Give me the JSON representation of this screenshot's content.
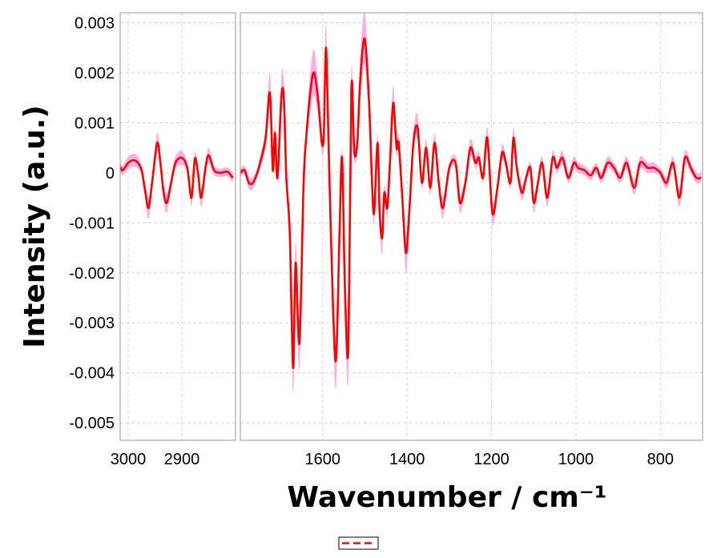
{
  "chart_data": {
    "type": "line",
    "ylabel": "Intensity (a.u.)",
    "xlabel": "Wavenumber / cm⁻¹",
    "ylim": [
      -0.00535,
      0.0032
    ],
    "y_ticks": [
      "0.003",
      "0.002",
      "0.001",
      "0",
      "-0.001",
      "-0.002",
      "-0.003",
      "-0.004",
      "-0.005"
    ],
    "y_tick_values": [
      0.003,
      0.002,
      0.001,
      0,
      -0.001,
      -0.002,
      -0.003,
      -0.004,
      -0.005
    ],
    "grid": true,
    "legend_position": "bottom-center",
    "colors": {
      "line": "#ff0000",
      "band": "#f7a6e6",
      "frame": "#9a9a9a",
      "grid": "#d6d6d6"
    },
    "panels": [
      {
        "xlim": [
          3015,
          2800
        ],
        "x_ticks": [
          "3000",
          "2900"
        ],
        "x_tick_values": [
          3000,
          2900
        ]
      },
      {
        "xlim": [
          1795,
          700
        ],
        "x_ticks": [
          "1600",
          "1400",
          "1200",
          "1000",
          "800"
        ],
        "x_tick_values": [
          1600,
          1400,
          1200,
          1000,
          800
        ]
      }
    ],
    "series": [
      {
        "line_style": "solid",
        "band_style": "shaded",
        "points_high": [
          [
            3015,
            0.00012
          ],
          [
            3010,
            5e-05
          ],
          [
            3000,
            0.0002
          ],
          [
            2990,
            0.00025
          ],
          [
            2982,
            0.0002
          ],
          [
            2975,
            5e-05
          ],
          [
            2968,
            -0.0004
          ],
          [
            2962,
            -0.0007
          ],
          [
            2955,
            -0.00015
          ],
          [
            2946,
            0.0006
          ],
          [
            2940,
            0.0002
          ],
          [
            2934,
            -0.0004
          ],
          [
            2928,
            -0.0006
          ],
          [
            2920,
            -0.0002
          ],
          [
            2912,
            0.0002
          ],
          [
            2900,
            0.0003
          ],
          [
            2890,
            0.0001
          ],
          [
            2882,
            -0.0005
          ],
          [
            2876,
            0.00028
          ],
          [
            2870,
            0.0
          ],
          [
            2864,
            -0.0005
          ],
          [
            2856,
            0.0001
          ],
          [
            2850,
            0.00035
          ],
          [
            2840,
            5e-05
          ],
          [
            2828,
            0.0
          ],
          [
            2815,
            2e-05
          ],
          [
            2805,
            -0.0001
          ]
        ],
        "points_low": [
          [
            1795,
            0.0
          ],
          [
            1785,
            5e-05
          ],
          [
            1775,
            -0.0002
          ],
          [
            1765,
            -0.0002
          ],
          [
            1755,
            0.0
          ],
          [
            1745,
            0.0003
          ],
          [
            1735,
            0.0007
          ],
          [
            1725,
            0.0016
          ],
          [
            1718,
            5e-05
          ],
          [
            1713,
            0.0008
          ],
          [
            1707,
            -0.0001
          ],
          [
            1698,
            0.0015
          ],
          [
            1692,
            0.0015
          ],
          [
            1686,
            -0.0001
          ],
          [
            1678,
            -0.0012
          ],
          [
            1670,
            -0.0039
          ],
          [
            1664,
            -0.0018
          ],
          [
            1655,
            -0.0034
          ],
          [
            1645,
            -0.0002
          ],
          [
            1638,
            0.0008
          ],
          [
            1628,
            0.0017
          ],
          [
            1620,
            0.002
          ],
          [
            1610,
            0.0014
          ],
          [
            1602,
            0.0006
          ],
          [
            1597,
            0.0008
          ],
          [
            1592,
            0.0025
          ],
          [
            1585,
            0.0002
          ],
          [
            1575,
            -0.0028
          ],
          [
            1568,
            -0.0037
          ],
          [
            1560,
            -0.0012
          ],
          [
            1554,
            0.0003
          ],
          [
            1547,
            -0.0024
          ],
          [
            1539,
            -0.0035
          ],
          [
            1532,
            0.0017
          ],
          [
            1525,
            0.0004
          ],
          [
            1518,
            0.0006
          ],
          [
            1512,
            0.0017
          ],
          [
            1505,
            0.0025
          ],
          [
            1499,
            0.0026
          ],
          [
            1490,
            0.0014
          ],
          [
            1483,
            -0.0002
          ],
          [
            1478,
            -0.0008
          ],
          [
            1470,
            0.0006
          ],
          [
            1465,
            -0.0008
          ],
          [
            1459,
            -0.0013
          ],
          [
            1454,
            -0.0004
          ],
          [
            1447,
            -0.0007
          ],
          [
            1440,
            0.0003
          ],
          [
            1433,
            0.0014
          ],
          [
            1425,
            0.0005
          ],
          [
            1420,
            0.0006
          ],
          [
            1412,
            -0.0004
          ],
          [
            1403,
            -0.0016
          ],
          [
            1395,
            -0.0008
          ],
          [
            1385,
            0.0006
          ],
          [
            1375,
            0.0009
          ],
          [
            1365,
            -0.0002
          ],
          [
            1355,
            0.0005
          ],
          [
            1345,
            -0.0003
          ],
          [
            1335,
            0.0006
          ],
          [
            1325,
            -0.0002
          ],
          [
            1315,
            -0.0007
          ],
          [
            1300,
            0.0001
          ],
          [
            1285,
            0.0002
          ],
          [
            1275,
            -0.0006
          ],
          [
            1262,
            -0.0002
          ],
          [
            1250,
            0.0005
          ],
          [
            1238,
            0.0002
          ],
          [
            1230,
            0.0003
          ],
          [
            1220,
            -0.0001
          ],
          [
            1210,
            0.0007
          ],
          [
            1198,
            -0.0008
          ],
          [
            1186,
            -0.0003
          ],
          [
            1175,
            0.0004
          ],
          [
            1166,
            0.0002
          ],
          [
            1155,
            -0.0002
          ],
          [
            1148,
            0.0007
          ],
          [
            1140,
            0.0001
          ],
          [
            1128,
            -0.0004
          ],
          [
            1118,
            -0.0001
          ],
          [
            1108,
            0.0001
          ],
          [
            1100,
            -0.0006
          ],
          [
            1090,
            -0.0002
          ],
          [
            1080,
            0.0002
          ],
          [
            1068,
            -0.0005
          ],
          [
            1055,
            0.0003
          ],
          [
            1045,
            0.0001
          ],
          [
            1032,
            0.0003
          ],
          [
            1018,
            -0.0001
          ],
          [
            1005,
            0.0002
          ],
          [
            995,
            0.0001
          ],
          [
            980,
            5e-05
          ],
          [
            965,
            -5e-05
          ],
          [
            952,
            0.0001
          ],
          [
            940,
            -0.0001
          ],
          [
            925,
            0.0002
          ],
          [
            910,
            0.0001
          ],
          [
            895,
            -0.0001
          ],
          [
            880,
            0.0002
          ],
          [
            862,
            -0.0003
          ],
          [
            848,
            0.0002
          ],
          [
            830,
            0.0001
          ],
          [
            815,
            0.0001
          ],
          [
            800,
            0.0
          ],
          [
            785,
            -0.0002
          ],
          [
            770,
            0.0002
          ],
          [
            755,
            -0.0005
          ],
          [
            742,
            0.0003
          ],
          [
            728,
            0.0001
          ],
          [
            715,
            -0.0001
          ],
          [
            703,
            -0.0001
          ]
        ],
        "band_spread": 0.00028
      }
    ]
  },
  "legend": {
    "entries": [
      {
        "style": "dashed",
        "color": "#ff0000"
      }
    ]
  }
}
